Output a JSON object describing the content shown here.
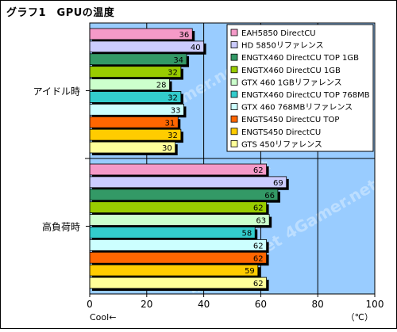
{
  "title": "グラフ1　GPUの温度",
  "chart_data": {
    "type": "bar",
    "orientation": "horizontal",
    "groups": [
      "アイドル時",
      "高負荷時"
    ],
    "series": [
      {
        "name": "EAH5850 DirectCU",
        "color": "#f59ac8",
        "values": [
          36,
          62
        ]
      },
      {
        "name": "HD 5850リファレンス",
        "color": "#ccccff",
        "values": [
          40,
          69
        ]
      },
      {
        "name": "ENGTX460 DirectCU TOP 1GB",
        "color": "#339966",
        "values": [
          34,
          66
        ]
      },
      {
        "name": "ENGTX460 DirectCU 1GB",
        "color": "#99cc00",
        "values": [
          32,
          62
        ]
      },
      {
        "name": "GTX 460 1GBリファレンス",
        "color": "#ccffcc",
        "values": [
          28,
          63
        ]
      },
      {
        "name": "ENGTX460 DirectCU TOP 768MB",
        "color": "#33cccc",
        "values": [
          32,
          58
        ]
      },
      {
        "name": "GTX 460 768MBリファレンス",
        "color": "#ccffff",
        "values": [
          33,
          62
        ]
      },
      {
        "name": "ENGTS450 DirectCU TOP",
        "color": "#ff6600",
        "values": [
          31,
          62
        ]
      },
      {
        "name": "ENGTS450 DirectCU",
        "color": "#ffcc00",
        "values": [
          32,
          59
        ]
      },
      {
        "name": "GTS 450リファレンス",
        "color": "#ffff99",
        "values": [
          30,
          62
        ]
      }
    ],
    "xlim": [
      0,
      100
    ],
    "xticks": [
      0,
      20,
      40,
      60,
      80,
      100
    ],
    "xunit": "（℃）",
    "x_hint": "Cool←",
    "grid": true,
    "legend": "top-right",
    "plot_background": "#99ccff",
    "watermark": "4Gamer.net"
  }
}
